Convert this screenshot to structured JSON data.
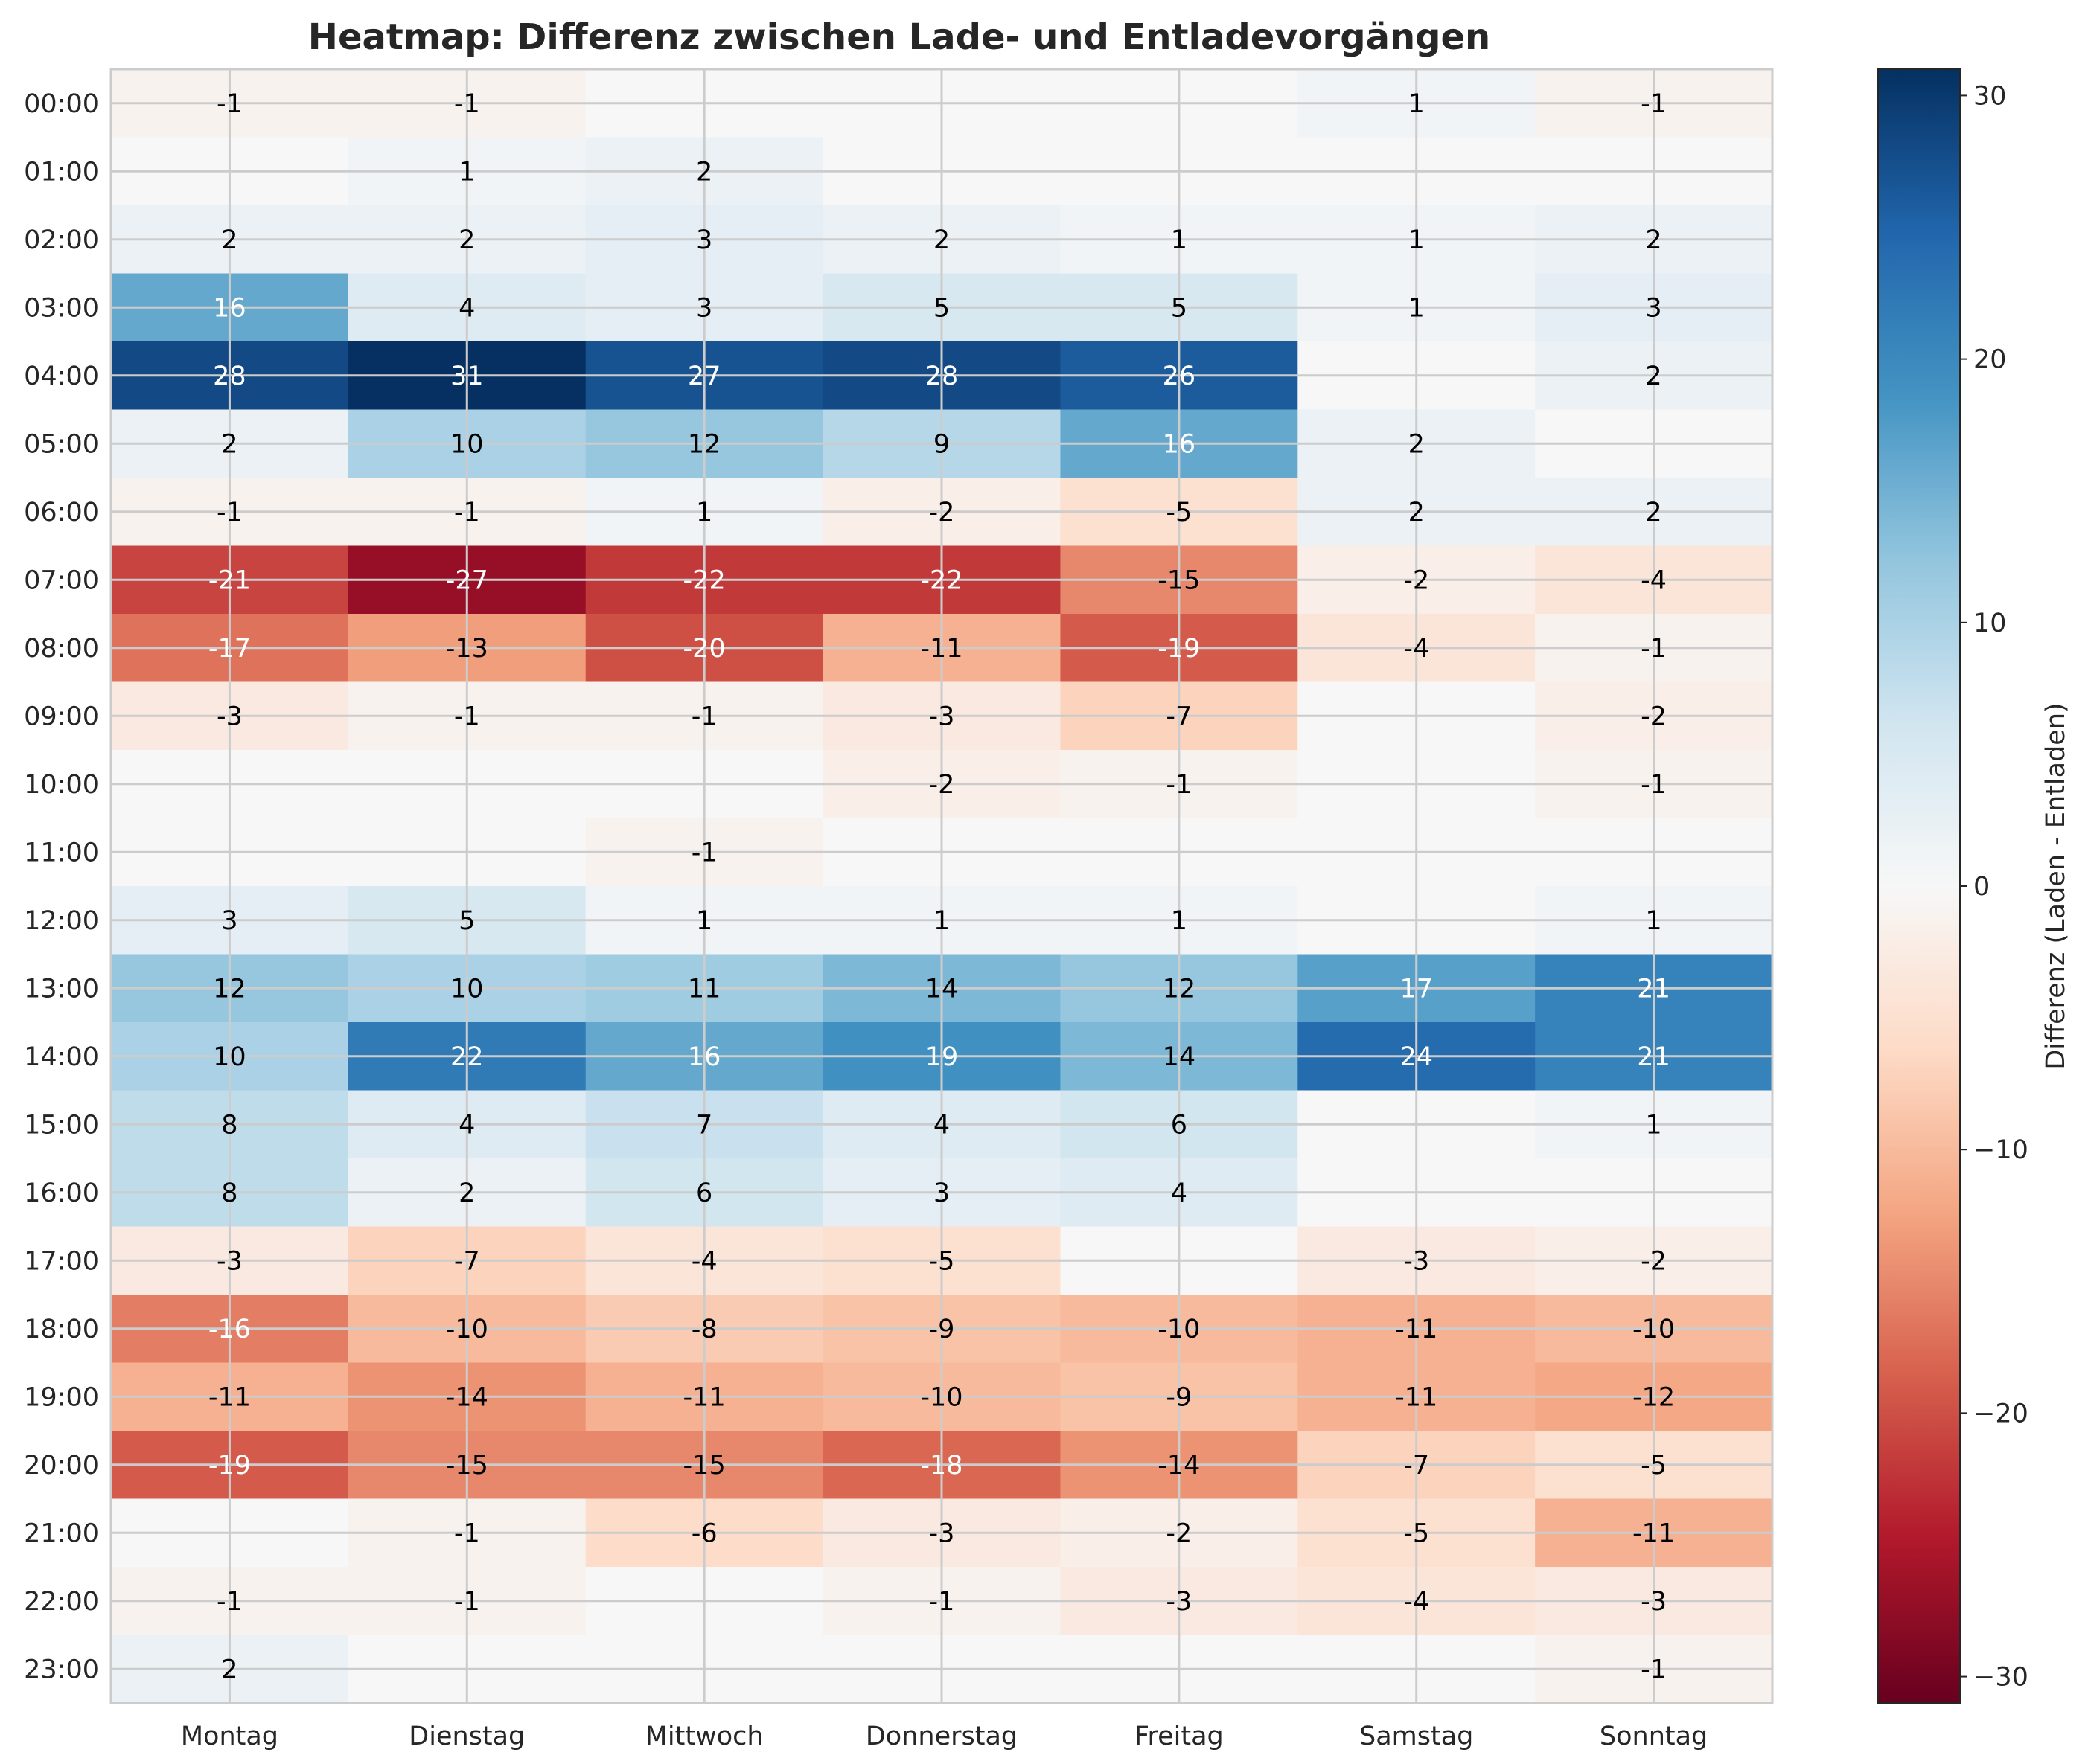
{
  "chart_data": {
    "type": "heatmap",
    "title": "Heatmap: Differenz zwischen Lade- und Entladevorgängen",
    "x_categories": [
      "Montag",
      "Dienstag",
      "Mittwoch",
      "Donnerstag",
      "Freitag",
      "Samstag",
      "Sonntag"
    ],
    "y_categories": [
      "00:00",
      "01:00",
      "02:00",
      "03:00",
      "04:00",
      "05:00",
      "06:00",
      "07:00",
      "08:00",
      "09:00",
      "10:00",
      "11:00",
      "12:00",
      "13:00",
      "14:00",
      "15:00",
      "16:00",
      "17:00",
      "18:00",
      "19:00",
      "20:00",
      "21:00",
      "22:00",
      "23:00"
    ],
    "values": [
      [
        -1,
        -1,
        0,
        0,
        0,
        1,
        -1
      ],
      [
        0,
        1,
        2,
        0,
        0,
        0,
        0
      ],
      [
        2,
        2,
        3,
        2,
        1,
        1,
        2
      ],
      [
        16,
        4,
        3,
        5,
        5,
        1,
        3
      ],
      [
        28,
        31,
        27,
        28,
        26,
        0,
        2
      ],
      [
        2,
        10,
        12,
        9,
        16,
        2,
        0
      ],
      [
        -1,
        -1,
        1,
        -2,
        -5,
        2,
        2
      ],
      [
        -21,
        -27,
        -22,
        -22,
        -15,
        -2,
        -4
      ],
      [
        -17,
        -13,
        -20,
        -11,
        -19,
        -4,
        -1
      ],
      [
        -3,
        -1,
        -1,
        -3,
        -7,
        0,
        -2
      ],
      [
        0,
        0,
        0,
        -2,
        -1,
        0,
        -1
      ],
      [
        0,
        0,
        -1,
        0,
        0,
        0,
        0
      ],
      [
        3,
        5,
        1,
        1,
        1,
        0,
        1
      ],
      [
        12,
        10,
        11,
        14,
        12,
        17,
        21
      ],
      [
        10,
        22,
        16,
        19,
        14,
        24,
        21
      ],
      [
        8,
        4,
        7,
        4,
        6,
        0,
        1
      ],
      [
        8,
        2,
        6,
        3,
        4,
        0,
        0
      ],
      [
        -3,
        -7,
        -4,
        -5,
        0,
        -3,
        -2
      ],
      [
        -16,
        -10,
        -8,
        -9,
        -10,
        -11,
        -10
      ],
      [
        -11,
        -14,
        -11,
        -10,
        -9,
        -11,
        -12
      ],
      [
        -19,
        -15,
        -15,
        -18,
        -14,
        -7,
        -5
      ],
      [
        0,
        -1,
        -6,
        -3,
        -2,
        -5,
        -11
      ],
      [
        -1,
        -1,
        0,
        -1,
        -3,
        -4,
        -3
      ],
      [
        2,
        0,
        0,
        0,
        0,
        0,
        -1
      ]
    ],
    "zero_values_shown": false,
    "colormap": "RdBu",
    "value_range": [
      -31,
      31
    ],
    "colorbar": {
      "label": "Differenz (Laden - Entladen)",
      "ticks": [
        30,
        20,
        10,
        0,
        -10,
        -20,
        -30
      ],
      "tick_labels": [
        "30",
        "20",
        "10",
        "0",
        "−10",
        "−20",
        "−30"
      ]
    },
    "grid": true
  }
}
